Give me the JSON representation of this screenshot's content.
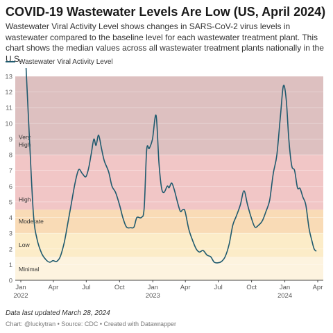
{
  "title": "COVID-19 Wastewater Levels Are Low (US, April 2024)",
  "description": "Wastewater Viral Activity Level shows changes in SARS-CoV-2 virus levels in wastewater compared to the baseline level for each wastewater treatment plant. This chart shows the median values across all wastewater treatment plants nationally in the U.S.",
  "note": "Data last updated March 28, 2024",
  "footer": "Chart: @luckytran • Source: CDC • Created with Datawrapper",
  "chart_data": {
    "type": "line",
    "ylim": [
      0,
      13
    ],
    "y_ticks": [
      "0",
      "1",
      "2",
      "3",
      "4",
      "5",
      "6",
      "7",
      "8",
      "9",
      "10",
      "11",
      "12",
      "13"
    ],
    "x_ticks": [
      {
        "date": "2022-01-01",
        "label": "Jan",
        "year": "2022"
      },
      {
        "date": "2022-04-01",
        "label": "Apr",
        "year": ""
      },
      {
        "date": "2022-07-01",
        "label": "Jul",
        "year": ""
      },
      {
        "date": "2022-10-01",
        "label": "Oct",
        "year": ""
      },
      {
        "date": "2023-01-01",
        "label": "Jan",
        "year": "2023"
      },
      {
        "date": "2023-04-01",
        "label": "Apr",
        "year": ""
      },
      {
        "date": "2023-07-01",
        "label": "Jul",
        "year": ""
      },
      {
        "date": "2023-10-01",
        "label": "Oct",
        "year": ""
      },
      {
        "date": "2024-01-01",
        "label": "Jan",
        "year": "2024"
      },
      {
        "date": "2024-04-01",
        "label": "Apr",
        "year": ""
      }
    ],
    "bands": [
      {
        "label": "Minimal",
        "from": 0,
        "to": 1.5,
        "color": "#fdf3df"
      },
      {
        "label": "Low",
        "from": 1.5,
        "to": 3,
        "color": "#fcecc8"
      },
      {
        "label": "Moderate",
        "from": 3,
        "to": 4.5,
        "color": "#f9dbb6"
      },
      {
        "label": "High",
        "from": 4.5,
        "to": 8,
        "color": "#f1c6c6"
      },
      {
        "label": "Very High",
        "from": 8,
        "to": 13,
        "color": "#ddc0c0"
      }
    ],
    "series": [
      {
        "name": "Wastewater Viral Activity Level",
        "color": "#1f5a6e",
        "points": [
          [
            "2022-01-15",
            13.8
          ],
          [
            "2022-01-25",
            9
          ],
          [
            "2022-02-05",
            4.2
          ],
          [
            "2022-02-15",
            2.6
          ],
          [
            "2022-02-28",
            1.7
          ],
          [
            "2022-03-12",
            1.3
          ],
          [
            "2022-03-22",
            1.15
          ],
          [
            "2022-03-31",
            1.25
          ],
          [
            "2022-04-10",
            1.2
          ],
          [
            "2022-04-20",
            1.5
          ],
          [
            "2022-05-01",
            2.4
          ],
          [
            "2022-05-10",
            3.5
          ],
          [
            "2022-05-20",
            4.8
          ],
          [
            "2022-05-31",
            6.2
          ],
          [
            "2022-06-10",
            7.05
          ],
          [
            "2022-06-20",
            6.8
          ],
          [
            "2022-06-30",
            6.6
          ],
          [
            "2022-07-08",
            7.2
          ],
          [
            "2022-07-15",
            8.1
          ],
          [
            "2022-07-22",
            9.0
          ],
          [
            "2022-07-28",
            8.6
          ],
          [
            "2022-08-04",
            9.25
          ],
          [
            "2022-08-12",
            8.4
          ],
          [
            "2022-08-20",
            7.6
          ],
          [
            "2022-09-01",
            6.9
          ],
          [
            "2022-09-10",
            6.0
          ],
          [
            "2022-09-20",
            5.6
          ],
          [
            "2022-10-01",
            4.8
          ],
          [
            "2022-10-10",
            4.0
          ],
          [
            "2022-10-20",
            3.4
          ],
          [
            "2022-11-01",
            3.35
          ],
          [
            "2022-11-10",
            3.4
          ],
          [
            "2022-11-18",
            4.0
          ],
          [
            "2022-11-30",
            4.0
          ],
          [
            "2022-12-08",
            4.6
          ],
          [
            "2022-12-15",
            8.3
          ],
          [
            "2022-12-22",
            8.4
          ],
          [
            "2022-12-31",
            9.0
          ],
          [
            "2023-01-10",
            10.5
          ],
          [
            "2023-01-18",
            7.5
          ],
          [
            "2023-01-25",
            5.9
          ],
          [
            "2023-02-01",
            5.6
          ],
          [
            "2023-02-10",
            6.0
          ],
          [
            "2023-02-15",
            5.9
          ],
          [
            "2023-02-22",
            6.2
          ],
          [
            "2023-03-01",
            5.8
          ],
          [
            "2023-03-10",
            5.0
          ],
          [
            "2023-03-18",
            4.4
          ],
          [
            "2023-03-25",
            4.5
          ],
          [
            "2023-03-31",
            4.4
          ],
          [
            "2023-04-10",
            3.3
          ],
          [
            "2023-04-20",
            2.6
          ],
          [
            "2023-05-01",
            2.0
          ],
          [
            "2023-05-10",
            1.8
          ],
          [
            "2023-05-20",
            1.9
          ],
          [
            "2023-05-31",
            1.6
          ],
          [
            "2023-06-10",
            1.5
          ],
          [
            "2023-06-20",
            1.15
          ],
          [
            "2023-07-01",
            1.12
          ],
          [
            "2023-07-10",
            1.2
          ],
          [
            "2023-07-20",
            1.5
          ],
          [
            "2023-07-31",
            2.3
          ],
          [
            "2023-08-10",
            3.5
          ],
          [
            "2023-08-20",
            4.1
          ],
          [
            "2023-08-31",
            4.8
          ],
          [
            "2023-09-10",
            5.7
          ],
          [
            "2023-09-20",
            4.8
          ],
          [
            "2023-09-30",
            4.0
          ],
          [
            "2023-10-10",
            3.4
          ],
          [
            "2023-10-20",
            3.5
          ],
          [
            "2023-10-31",
            3.8
          ],
          [
            "2023-11-10",
            4.4
          ],
          [
            "2023-11-20",
            5.1
          ],
          [
            "2023-11-30",
            6.8
          ],
          [
            "2023-12-10",
            8.0
          ],
          [
            "2023-12-20",
            10.5
          ],
          [
            "2023-12-28",
            12.4
          ],
          [
            "2024-01-05",
            11.5
          ],
          [
            "2024-01-12",
            9.0
          ],
          [
            "2024-01-20",
            7.3
          ],
          [
            "2024-01-28",
            7.0
          ],
          [
            "2024-02-05",
            5.9
          ],
          [
            "2024-02-12",
            5.85
          ],
          [
            "2024-02-20",
            5.3
          ],
          [
            "2024-02-28",
            4.8
          ],
          [
            "2024-03-08",
            3.3
          ],
          [
            "2024-03-16",
            2.5
          ],
          [
            "2024-03-22",
            2.0
          ],
          [
            "2024-03-28",
            1.85
          ]
        ]
      }
    ]
  }
}
